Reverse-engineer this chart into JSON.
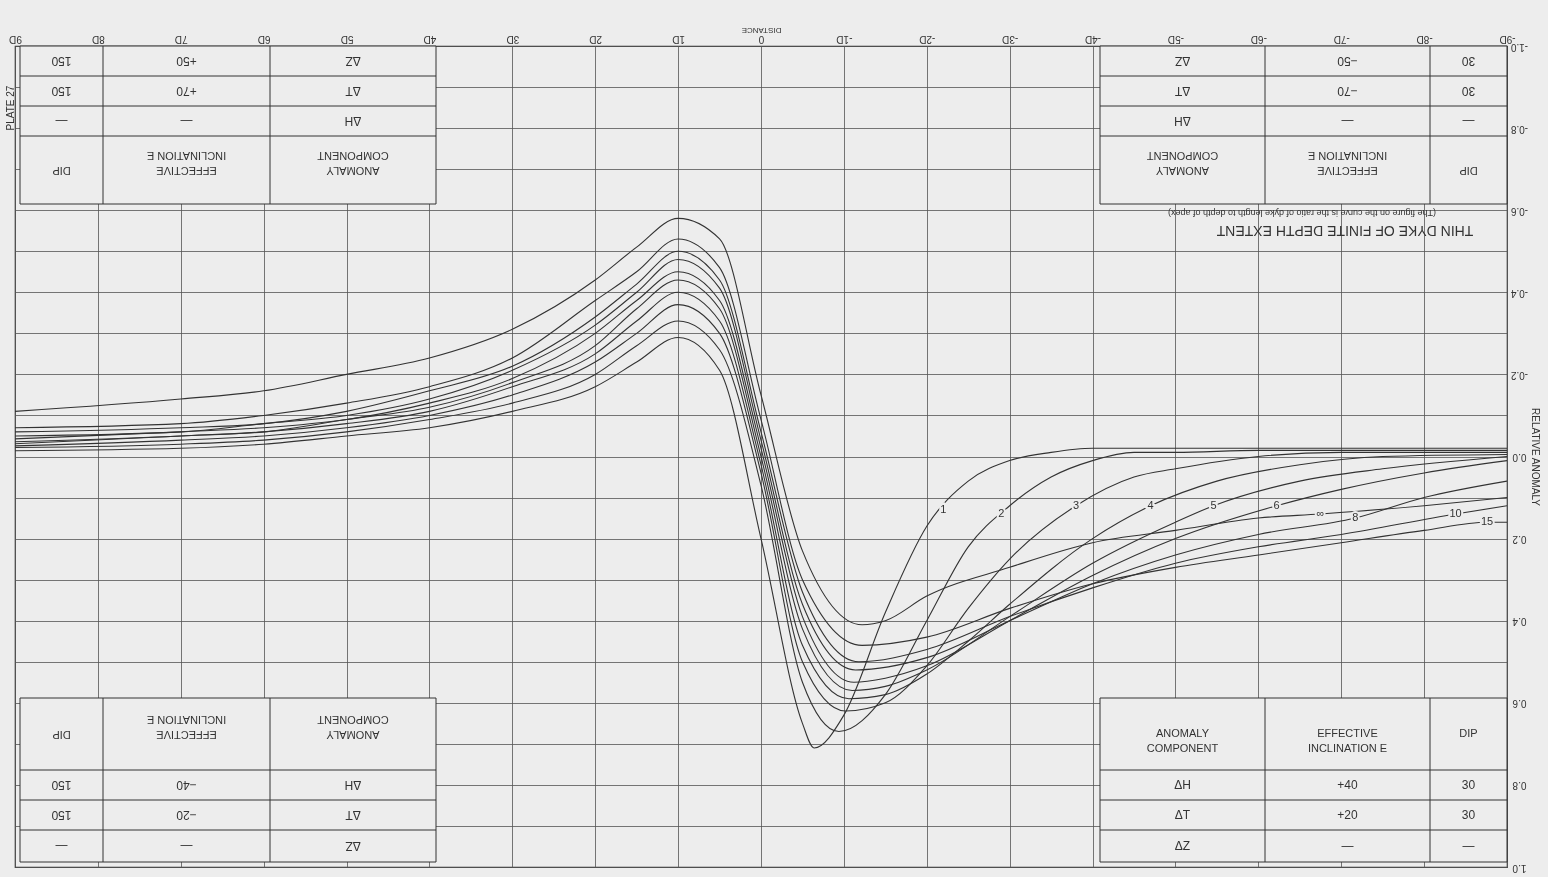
{
  "chart_data": {
    "type": "line",
    "title": "THIN DYKE OF FINITE DEPTH EXTENT",
    "subtitle": "(The figure on the curve is the ratio of dyke length to depth of apex)",
    "xlabel": "DISTANCE",
    "ylabel": "RELATIVE ANOMALY",
    "xlim": [
      9,
      -9
    ],
    "ylim": [
      1,
      -1
    ],
    "xticks": [
      {
        "value": 9,
        "label": "9D"
      },
      {
        "value": 8,
        "label": "8D"
      },
      {
        "value": 7,
        "label": "7D"
      },
      {
        "value": 6,
        "label": "6D"
      },
      {
        "value": 5,
        "label": "5D"
      },
      {
        "value": 4,
        "label": "4D"
      },
      {
        "value": 3,
        "label": "3D"
      },
      {
        "value": 2,
        "label": "2D"
      },
      {
        "value": 1,
        "label": "1D"
      },
      0,
      {
        "value": -1,
        "label": "-1D"
      },
      {
        "value": -2,
        "label": "-2D"
      },
      {
        "value": -3,
        "label": "-3D"
      },
      {
        "value": -4,
        "label": "-4D"
      },
      {
        "value": -5,
        "label": "-5D"
      },
      {
        "value": -6,
        "label": "-6D"
      },
      {
        "value": -7,
        "label": "-7D"
      },
      {
        "value": -8,
        "label": "-8D"
      },
      {
        "value": -9,
        "label": "-9D"
      }
    ],
    "yticks": [
      {
        "value": -1,
        "label": "-1.0"
      },
      {
        "value": -0.9,
        "label": null
      },
      -0.8,
      {
        "value": -0.7,
        "label": null
      },
      -0.6,
      {
        "value": -0.5,
        "label": null
      },
      -0.4,
      {
        "value": -0.3,
        "label": null
      },
      -0.2,
      {
        "value": -0.1,
        "label": null
      },
      {
        "value": 0,
        "label": "0.0"
      },
      {
        "value": 0.1,
        "label": null
      },
      0.2,
      {
        "value": 0.3,
        "label": null
      },
      0.4,
      {
        "value": 0.5,
        "label": null
      },
      0.6,
      {
        "value": 0.7,
        "label": null
      },
      0.8,
      {
        "value": 0.9,
        "label": null
      },
      {
        "value": 1,
        "label": "1.0"
      }
    ],
    "grid": true,
    "series": [
      {
        "color": "#333333",
        "x": [
          9,
          7,
          6,
          5,
          4,
          3,
          2,
          1.5,
          1,
          0.5,
          0,
          -0.5,
          -0.64,
          -1,
          -1.5,
          -2,
          -2.5,
          -3,
          -3.5,
          -4,
          -5,
          -6,
          -7,
          -8,
          -9
        ],
        "values": [
          -0.014,
          -0.02,
          -0.03,
          -0.05,
          -0.07,
          -0.11,
          -0.17,
          -0.23,
          -0.29,
          -0.21,
          0.2,
          0.65,
          0.71,
          0.63,
          0.38,
          0.17,
          0.06,
          0.01,
          -0.01,
          -0.02,
          -0.02,
          -0.02,
          -0.02,
          -0.02,
          -0.02
        ]
      },
      {
        "color": "#333333",
        "x": [
          9,
          7,
          6,
          5,
          4,
          3,
          2,
          1.5,
          1,
          0.5,
          0,
          -0.5,
          -0.94,
          -1.5,
          -2,
          -2.5,
          -3,
          -3.5,
          -4,
          -4.5,
          -5,
          -6,
          -7,
          -8,
          -9
        ],
        "values": [
          -0.022,
          -0.03,
          -0.04,
          -0.06,
          -0.09,
          -0.13,
          -0.2,
          -0.27,
          -0.33,
          -0.26,
          0.07,
          0.55,
          0.67,
          0.58,
          0.4,
          0.22,
          0.12,
          0.05,
          0.01,
          -0.01,
          -0.01,
          -0.015,
          -0.015,
          -0.015,
          -0.015
        ]
      },
      {
        "color": "#333333",
        "x": [
          9,
          7,
          6,
          5,
          4,
          3,
          2,
          1.5,
          1,
          0.5,
          0,
          -0.5,
          -1.02,
          -1.5,
          -2,
          -2.5,
          -3,
          -3.8,
          -4.5,
          -5,
          -6,
          -7,
          -8,
          -9
        ],
        "values": [
          -0.026,
          -0.04,
          -0.05,
          -0.07,
          -0.1,
          -0.15,
          -0.23,
          -0.3,
          -0.37,
          -0.3,
          0.04,
          0.5,
          0.62,
          0.6,
          0.51,
          0.37,
          0.25,
          0.12,
          0.05,
          0.03,
          0,
          -0.01,
          -0.01,
          -0.01
        ]
      },
      {
        "color": "#333333",
        "x": [
          9,
          7,
          6,
          5,
          4,
          3,
          2,
          1.5,
          1,
          0.5,
          0,
          -0.5,
          -1.06,
          -1.5,
          -2,
          -2.5,
          -3,
          -4,
          -4.7,
          -5.5,
          -6.5,
          -7.5,
          -9
        ],
        "values": [
          -0.031,
          -0.05,
          -0.06,
          -0.08,
          -0.11,
          -0.17,
          -0.25,
          -0.33,
          -0.4,
          -0.33,
          0.02,
          0.46,
          0.59,
          0.58,
          0.53,
          0.45,
          0.36,
          0.2,
          0.12,
          0.06,
          0.02,
          0,
          -0.005
        ]
      },
      {
        "color": "#333333",
        "x": [
          9,
          7,
          6,
          5,
          4,
          3,
          2,
          1.5,
          1,
          0.5,
          0,
          -0.5,
          -1.1,
          -1.5,
          -2,
          -3,
          -4,
          -5,
          -5.46,
          -6.5,
          -7.5,
          -9
        ],
        "values": [
          -0.036,
          -0.05,
          -0.06,
          -0.09,
          -0.12,
          -0.18,
          -0.27,
          -0.36,
          -0.43,
          -0.36,
          0,
          0.42,
          0.57,
          0.56,
          0.52,
          0.39,
          0.26,
          0.16,
          0.12,
          0.06,
          0.03,
          0
        ]
      },
      {
        "color": "#333333",
        "x": [
          9,
          7,
          6,
          5,
          4,
          3,
          2,
          1.5,
          1,
          0.5,
          0,
          -0.5,
          -1.12,
          -1.5,
          -2,
          -3,
          -4,
          -5,
          -6.22,
          -7,
          -8,
          -9
        ],
        "values": [
          -0.043,
          -0.06,
          -0.07,
          -0.09,
          -0.13,
          -0.19,
          -0.3,
          -0.38,
          -0.45,
          -0.38,
          -0.02,
          0.39,
          0.55,
          0.54,
          0.51,
          0.4,
          0.29,
          0.2,
          0.12,
          0.08,
          0.04,
          0.01
        ]
      },
      {
        "color": "#333333",
        "x": [
          9,
          7,
          6,
          5,
          4,
          3,
          2,
          1.5,
          1,
          0.5,
          0,
          -0.5,
          -1.14,
          -2,
          -3,
          -4,
          -5,
          -6,
          -7.17,
          -8,
          -9
        ],
        "values": [
          -0.05,
          -0.06,
          -0.08,
          -0.1,
          -0.14,
          -0.21,
          -0.32,
          -0.4,
          -0.48,
          -0.41,
          -0.04,
          0.36,
          0.52,
          0.49,
          0.4,
          0.31,
          0.24,
          0.19,
          0.15,
          0.1,
          0.06
        ]
      },
      {
        "color": "#333333",
        "x": [
          9,
          7,
          6,
          5,
          4,
          3,
          2,
          1.5,
          1,
          0.5,
          0,
          -0.5,
          -1.18,
          -2,
          -3,
          -4,
          -5,
          -6,
          -7,
          -8.38,
          -9
        ],
        "values": [
          -0.06,
          -0.07,
          -0.08,
          -0.11,
          -0.16,
          -0.22,
          -0.34,
          -0.42,
          -0.5,
          -0.43,
          -0.06,
          0.33,
          0.5,
          0.47,
          0.39,
          0.32,
          0.26,
          0.22,
          0.19,
          0.14,
          0.12
        ]
      },
      {
        "color": "#333333",
        "x": [
          9,
          7,
          6,
          5,
          4,
          3,
          2,
          1.5,
          1,
          0.5,
          0,
          -0.5,
          -1.22,
          -2,
          -3,
          -4,
          -5,
          -6,
          -7,
          -8,
          -8.76,
          -9
        ],
        "values": [
          -0.07,
          -0.08,
          -0.1,
          -0.13,
          -0.17,
          -0.24,
          -0.38,
          -0.45,
          -0.53,
          -0.46,
          -0.09,
          0.3,
          0.46,
          0.44,
          0.37,
          0.31,
          0.27,
          0.24,
          0.21,
          0.18,
          0.16,
          0.16
        ]
      },
      {
        "color": "#333333",
        "x": [
          9,
          7,
          6,
          5,
          4,
          3,
          2,
          1.5,
          1,
          0.5,
          0,
          -0.5,
          -1.22,
          -1.5,
          -2,
          -3,
          -4,
          -5,
          -6,
          -6.75,
          -8,
          -9
        ],
        "values": [
          -0.11,
          -0.14,
          -0.16,
          -0.2,
          -0.24,
          -0.31,
          -0.43,
          -0.51,
          -0.58,
          -0.53,
          -0.15,
          0.23,
          0.41,
          0.4,
          0.34,
          0.27,
          0.21,
          0.18,
          0.15,
          0.14,
          0.12,
          0.1
        ]
      }
    ],
    "annotations": [
      "PLATE 27",
      "ANOMALY\nCOMPONENT",
      "EFFECTIVE\nINCLINATION E",
      "DIP",
      "ΔH",
      "—",
      "—",
      "ΔT",
      "+70",
      "150",
      "ΔZ",
      "+50",
      "150",
      "ANOMALY\nCOMPONENT",
      "EFFECTIVE\nINCLINATION E",
      "DIP",
      "ΔH",
      "—",
      "—",
      "ΔT",
      "−70",
      "30",
      "ΔZ",
      "−50",
      "30",
      "ANOMALY\nCOMPONENT",
      "EFFECTIVE\nINCLINATION E",
      "DIP",
      "ΔH",
      "−40",
      "150",
      "ΔT",
      "−20",
      "150",
      "ΔZ",
      "—",
      "—",
      "ANOMALY\nCOMPONENT",
      "EFFECTIVE\nINCLINATION E",
      "DIP",
      "ΔH",
      "+40",
      "30",
      "ΔT",
      "+20",
      "30",
      "ΔZ",
      "—",
      "—",
      {
        "text": "1",
        "x": -2.2,
        "y": 0.13
      },
      {
        "text": "2",
        "x": -2.9,
        "y": 0.14
      },
      {
        "text": "3",
        "x": -3.8,
        "y": 0.12
      },
      {
        "text": "4",
        "x": -4.7,
        "y": 0.12
      },
      {
        "text": "5",
        "x": -5.46,
        "y": 0.12
      },
      {
        "text": "6",
        "x": -6.22,
        "y": 0.12
      },
      {
        "text": "∞",
        "x": -6.75,
        "y": 0.14
      },
      {
        "text": "8",
        "x": -7.17,
        "y": 0.15
      },
      {
        "text": "10",
        "x": -8.38,
        "y": 0.14
      },
      {
        "text": "15",
        "x": -8.76,
        "y": 0.16
      }
    ]
  }
}
